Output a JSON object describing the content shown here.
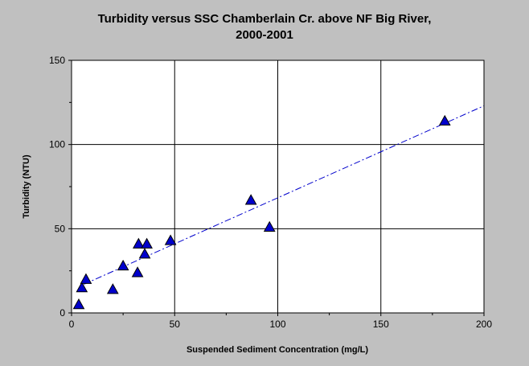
{
  "chart_data": {
    "type": "scatter",
    "title_line1": "Turbidity versus SSC Chamberlain Cr. above NF Big River,",
    "title_line2": "2000-2001",
    "xlabel": "Suspended Sediment Concentration (mg/L)",
    "ylabel": "Turbidity (NTU)",
    "xlim": [
      0,
      200
    ],
    "ylim": [
      0,
      150
    ],
    "xticks": [
      0,
      50,
      100,
      150,
      200
    ],
    "yticks": [
      0,
      50,
      100,
      150
    ],
    "grid": true,
    "marker": "triangle",
    "colors": {
      "marker": "#0000cc",
      "trendline": "#0000cc",
      "plot_bg": "#ffffff",
      "page_bg": "#c0c0c0"
    },
    "points": [
      {
        "x": 3.5,
        "y": 5
      },
      {
        "x": 5,
        "y": 15
      },
      {
        "x": 7,
        "y": 20
      },
      {
        "x": 20,
        "y": 14
      },
      {
        "x": 25,
        "y": 28
      },
      {
        "x": 32,
        "y": 24
      },
      {
        "x": 32.5,
        "y": 41
      },
      {
        "x": 35.5,
        "y": 35
      },
      {
        "x": 36.5,
        "y": 41
      },
      {
        "x": 48,
        "y": 43
      },
      {
        "x": 87,
        "y": 67
      },
      {
        "x": 96,
        "y": 51
      },
      {
        "x": 181,
        "y": 114
      }
    ],
    "trendline": [
      {
        "x": 6,
        "y": 17
      },
      {
        "x": 200,
        "y": 123
      }
    ]
  }
}
